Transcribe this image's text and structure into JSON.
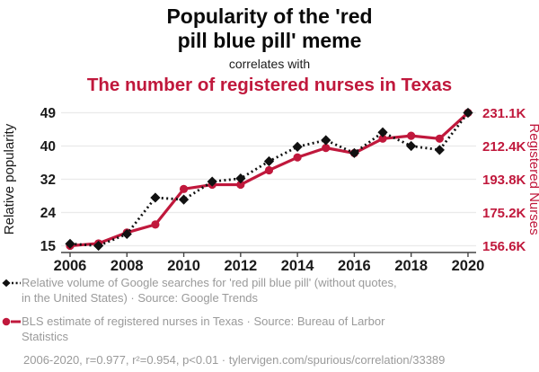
{
  "header": {
    "title_lines": [
      "Popularity of the 'red",
      "pill blue pill' meme"
    ],
    "connector": "correlates with",
    "subtitle": "The number of registered nurses in Texas"
  },
  "chart_data": {
    "type": "line",
    "x": [
      2006,
      2007,
      2008,
      2009,
      2010,
      2011,
      2012,
      2013,
      2014,
      2015,
      2016,
      2017,
      2018,
      2019,
      2020
    ],
    "x_ticks": [
      2006,
      2008,
      2010,
      2012,
      2014,
      2016,
      2018,
      2020
    ],
    "series": [
      {
        "name": "Relative volume of Google searches for 'red pill blue pill' (without quotes, in the United States)",
        "source": "Google Trends",
        "axis": "left",
        "marker": "diamond",
        "line_style": "dotted",
        "values": [
          15.5,
          15.0,
          18.0,
          27.3,
          26.8,
          31.4,
          32.2,
          36.6,
          40.3,
          42.0,
          38.7,
          44.0,
          40.5,
          39.5,
          49.0
        ]
      },
      {
        "name": "BLS estimate of registered nurses in Texas",
        "source": "Bureau of Larbor Statistics",
        "axis": "right",
        "marker": "circle",
        "line_style": "solid",
        "unit": "thousands",
        "values_thousands": [
          156.6,
          157.9,
          164.0,
          168.5,
          188.4,
          190.8,
          190.8,
          198.9,
          206.1,
          211.4,
          208.5,
          216.6,
          218.2,
          216.6,
          231.1
        ]
      }
    ],
    "left_axis": {
      "label": "Relative popularity",
      "tick_labels": [
        "49",
        "40",
        "32",
        "24",
        "15"
      ],
      "range": [
        15,
        49
      ],
      "grid": true
    },
    "right_axis": {
      "label": "Registered Nurses",
      "tick_labels": [
        "231.1K",
        "212.4K",
        "193.8K",
        "175.2K",
        "156.6K"
      ],
      "range_thousands": [
        156.6,
        231.1
      ]
    },
    "legend": [
      {
        "label": "Relative volume of Google searches for 'red pill blue pill' (without quotes, in the United States) · Source: Google Trends"
      },
      {
        "label": "BLS estimate of registered nurses in Texas · Source: Bureau of Larbor Statistics"
      }
    ],
    "footnote": "2006-2020, r=0.977, r²=0.954, p<0.01 · tylervigen.com/spurious/correlation/33389"
  },
  "colors": {
    "accent_red": "#c0183c",
    "series_black": "#111111",
    "grid": "#eaeaea",
    "axis": "#444444",
    "tick_label": "#1a1a1a",
    "legend_text": "#9a9a9a"
  }
}
